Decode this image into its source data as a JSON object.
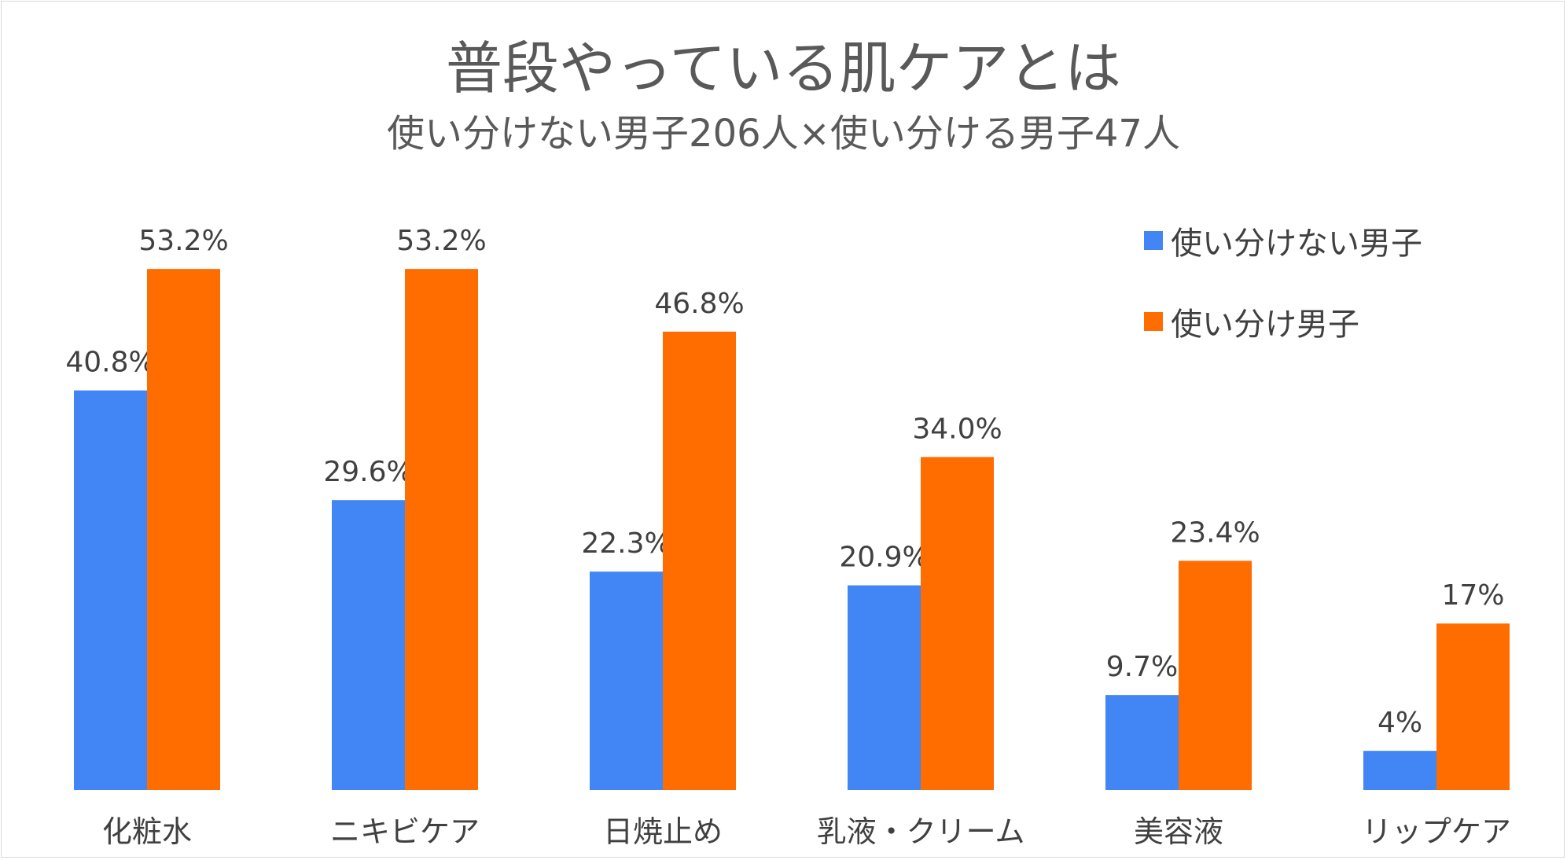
{
  "chart_data": {
    "type": "bar",
    "title": "普段やっている肌ケアとは",
    "subtitle": "使い分けない男子206人×使い分ける男子47人",
    "categories": [
      "化粧水",
      "ニキビケア",
      "日焼止め",
      "乳液・クリーム",
      "美容液",
      "リップケア"
    ],
    "series": [
      {
        "name": "使い分けない男子",
        "color": "#4285F4",
        "values": [
          40.8,
          29.6,
          22.3,
          20.9,
          9.7,
          4
        ],
        "labels": [
          "40.8%",
          "29.6%",
          "22.3%",
          "20.9%",
          "9.7%",
          "4%"
        ]
      },
      {
        "name": "使い分け男子",
        "color": "#FF6D01",
        "values": [
          53.2,
          53.2,
          46.8,
          34.0,
          23.4,
          17
        ],
        "labels": [
          "53.2%",
          "53.2%",
          "46.8%",
          "34.0%",
          "23.4%",
          "17%"
        ]
      }
    ],
    "xlabel": "",
    "ylabel": "",
    "ylim": [
      0,
      60
    ],
    "grid": false,
    "legend": "top-right"
  }
}
